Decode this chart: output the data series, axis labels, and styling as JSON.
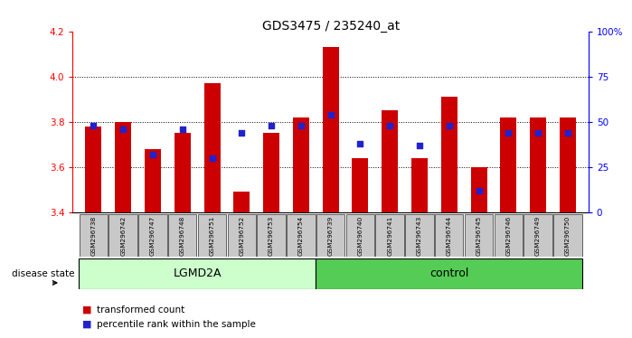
{
  "title": "GDS3475 / 235240_at",
  "samples": [
    "GSM296738",
    "GSM296742",
    "GSM296747",
    "GSM296748",
    "GSM296751",
    "GSM296752",
    "GSM296753",
    "GSM296754",
    "GSM296739",
    "GSM296740",
    "GSM296741",
    "GSM296743",
    "GSM296744",
    "GSM296745",
    "GSM296746",
    "GSM296749",
    "GSM296750"
  ],
  "bar_values": [
    3.78,
    3.8,
    3.68,
    3.75,
    3.97,
    3.49,
    3.75,
    3.82,
    4.13,
    3.64,
    3.85,
    3.64,
    3.91,
    3.6,
    3.82,
    3.82,
    3.82
  ],
  "dot_percentiles": [
    48,
    46,
    32,
    46,
    30,
    44,
    48,
    48,
    54,
    38,
    48,
    37,
    48,
    12,
    44,
    44,
    44
  ],
  "ylim_left": [
    3.4,
    4.2
  ],
  "ylim_right": [
    0,
    100
  ],
  "yticks_left": [
    3.4,
    3.6,
    3.8,
    4.0,
    4.2
  ],
  "yticks_right": [
    0,
    25,
    50,
    75,
    100
  ],
  "ytick_labels_right": [
    "0",
    "25",
    "50",
    "75",
    "100%"
  ],
  "bar_color": "#cc0000",
  "dot_color": "#2222cc",
  "lgmd2a_count": 8,
  "control_count": 9,
  "lgmd2a_color": "#ccffcc",
  "control_color": "#55cc55",
  "group_label_lgmd2a": "LGMD2A",
  "group_label_control": "control",
  "disease_state_label": "disease state",
  "legend_bar": "transformed count",
  "legend_dot": "percentile rank within the sample",
  "bg_label_row": "#c8c8c8",
  "grid_lines": [
    3.6,
    3.8,
    4.0
  ]
}
